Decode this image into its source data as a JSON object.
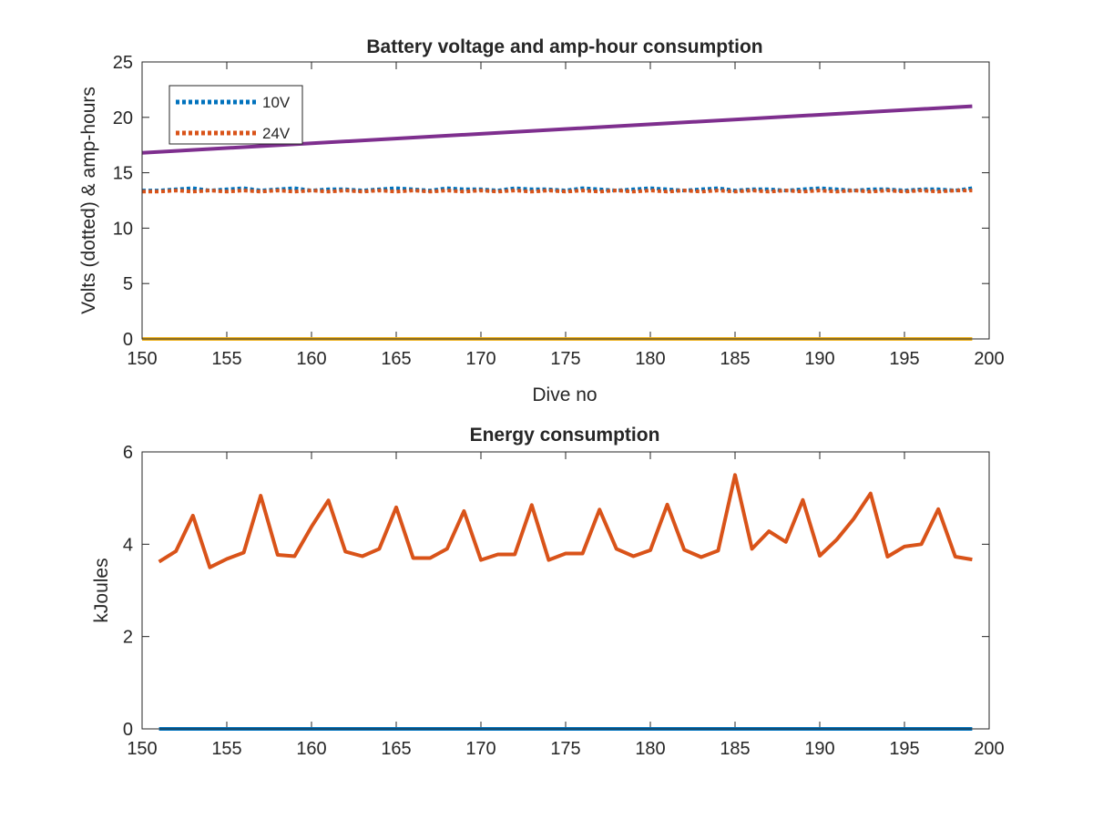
{
  "chart_data": [
    {
      "type": "line",
      "title": "Battery voltage and amp-hour consumption",
      "xlabel": "Dive no",
      "ylabel": "Volts (dotted) & amp-hours",
      "xlim": [
        150,
        200
      ],
      "ylim": [
        0,
        25
      ],
      "xticks": [
        "150",
        "155",
        "160",
        "165",
        "170",
        "175",
        "180",
        "185",
        "190",
        "195",
        "200"
      ],
      "yticks": [
        "0",
        "5",
        "10",
        "15",
        "20",
        "25"
      ],
      "legend_position": "top-left",
      "series": [
        {
          "name": "10V",
          "style": "dotted",
          "color": "#0072BD",
          "x": [
            150,
            151,
            152,
            153,
            154,
            155,
            156,
            157,
            158,
            159,
            160,
            161,
            162,
            163,
            164,
            165,
            166,
            167,
            168,
            169,
            170,
            171,
            172,
            173,
            174,
            175,
            176,
            177,
            178,
            179,
            180,
            181,
            182,
            183,
            184,
            185,
            186,
            187,
            188,
            189,
            190,
            191,
            192,
            193,
            194,
            195,
            196,
            197,
            198,
            199
          ],
          "y": [
            13.4,
            13.4,
            13.5,
            13.6,
            13.4,
            13.5,
            13.6,
            13.4,
            13.5,
            13.6,
            13.4,
            13.5,
            13.5,
            13.4,
            13.5,
            13.6,
            13.5,
            13.4,
            13.6,
            13.5,
            13.5,
            13.4,
            13.6,
            13.5,
            13.5,
            13.4,
            13.6,
            13.5,
            13.4,
            13.5,
            13.6,
            13.5,
            13.4,
            13.5,
            13.6,
            13.4,
            13.5,
            13.5,
            13.4,
            13.5,
            13.6,
            13.5,
            13.4,
            13.5,
            13.5,
            13.4,
            13.5,
            13.5,
            13.4,
            13.6
          ]
        },
        {
          "name": "24V",
          "style": "dotted",
          "color": "#D95319",
          "x": [
            150,
            151,
            152,
            153,
            154,
            155,
            156,
            157,
            158,
            159,
            160,
            161,
            162,
            163,
            164,
            165,
            166,
            167,
            168,
            169,
            170,
            171,
            172,
            173,
            174,
            175,
            176,
            177,
            178,
            179,
            180,
            181,
            182,
            183,
            184,
            185,
            186,
            187,
            188,
            189,
            190,
            191,
            192,
            193,
            194,
            195,
            196,
            197,
            198,
            199
          ],
          "y": [
            13.3,
            13.3,
            13.4,
            13.3,
            13.4,
            13.3,
            13.4,
            13.3,
            13.4,
            13.3,
            13.4,
            13.3,
            13.4,
            13.3,
            13.4,
            13.3,
            13.4,
            13.3,
            13.4,
            13.3,
            13.4,
            13.3,
            13.4,
            13.3,
            13.4,
            13.3,
            13.4,
            13.3,
            13.4,
            13.3,
            13.4,
            13.3,
            13.4,
            13.3,
            13.4,
            13.3,
            13.4,
            13.3,
            13.4,
            13.3,
            13.4,
            13.3,
            13.4,
            13.3,
            13.4,
            13.3,
            13.4,
            13.3,
            13.4,
            13.4
          ]
        },
        {
          "name": "",
          "style": "solid",
          "color": "#EDB120",
          "x": [
            150,
            199
          ],
          "y": [
            0,
            0
          ]
        },
        {
          "name": "",
          "style": "solid",
          "color": "#7E2F8E",
          "x": [
            150,
            199
          ],
          "y": [
            16.8,
            21.0
          ]
        }
      ]
    },
    {
      "type": "line",
      "title": "Energy consumption",
      "xlabel": "",
      "ylabel": "kJoules",
      "xlim": [
        150,
        200
      ],
      "ylim": [
        0,
        6
      ],
      "xticks": [
        "150",
        "155",
        "160",
        "165",
        "170",
        "175",
        "180",
        "185",
        "190",
        "195",
        "200"
      ],
      "yticks": [
        "0",
        "2",
        "4",
        "6"
      ],
      "series": [
        {
          "name": "",
          "style": "solid",
          "color": "#0072BD",
          "x": [
            151,
            199
          ],
          "y": [
            0,
            0
          ]
        },
        {
          "name": "",
          "style": "solid",
          "color": "#D95319",
          "x": [
            151,
            152,
            153,
            154,
            155,
            156,
            157,
            158,
            159,
            160,
            161,
            162,
            163,
            164,
            165,
            166,
            167,
            168,
            169,
            170,
            171,
            172,
            173,
            174,
            175,
            176,
            177,
            178,
            179,
            180,
            181,
            182,
            183,
            184,
            185,
            186,
            187,
            188,
            189,
            190,
            191,
            192,
            193,
            194,
            195,
            196,
            197,
            198,
            199
          ],
          "y": [
            3.62,
            3.85,
            4.62,
            3.5,
            3.68,
            3.82,
            5.05,
            3.77,
            3.74,
            4.38,
            4.95,
            3.84,
            3.74,
            3.9,
            4.8,
            3.7,
            3.7,
            3.9,
            4.72,
            3.66,
            3.78,
            3.78,
            4.85,
            3.66,
            3.8,
            3.8,
            4.75,
            3.9,
            3.74,
            3.87,
            4.86,
            3.88,
            3.72,
            3.86,
            5.5,
            3.9,
            4.28,
            4.05,
            4.96,
            3.75,
            4.1,
            4.55,
            5.1,
            3.73,
            3.95,
            4.0,
            4.76,
            3.73,
            3.67
          ]
        }
      ]
    }
  ]
}
